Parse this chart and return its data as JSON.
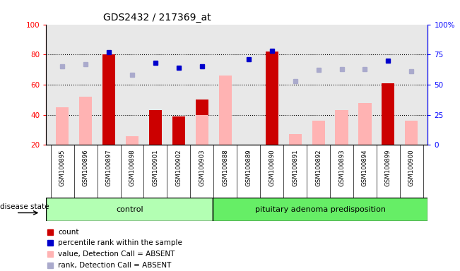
{
  "title": "GDS2432 / 217369_at",
  "samples": [
    "GSM100895",
    "GSM100896",
    "GSM100897",
    "GSM100898",
    "GSM100901",
    "GSM100902",
    "GSM100903",
    "GSM100888",
    "GSM100889",
    "GSM100890",
    "GSM100891",
    "GSM100892",
    "GSM100893",
    "GSM100894",
    "GSM100899",
    "GSM100900"
  ],
  "groups": [
    "control",
    "control",
    "control",
    "control",
    "control",
    "control",
    "control",
    "pituitary adenoma predisposition",
    "pituitary adenoma predisposition",
    "pituitary adenoma predisposition",
    "pituitary adenoma predisposition",
    "pituitary adenoma predisposition",
    "pituitary adenoma predisposition",
    "pituitary adenoma predisposition",
    "pituitary adenoma predisposition",
    "pituitary adenoma predisposition"
  ],
  "count_bars": [
    0,
    0,
    80,
    0,
    43,
    39,
    50,
    0,
    0,
    82,
    0,
    0,
    0,
    0,
    61,
    0
  ],
  "value_absent_bars": [
    45,
    52,
    0,
    26,
    0,
    0,
    40,
    66,
    0,
    0,
    27,
    36,
    43,
    48,
    0,
    36
  ],
  "percentile_rank_dots": [
    0,
    0,
    77,
    0,
    68,
    64,
    65,
    0,
    71,
    78,
    0,
    0,
    0,
    0,
    70,
    0
  ],
  "rank_absent_dots": [
    65,
    67,
    0,
    58,
    0,
    0,
    0,
    0,
    0,
    0,
    53,
    62,
    63,
    63,
    0,
    61
  ],
  "ylim": [
    20,
    100
  ],
  "y2lim": [
    0,
    100
  ],
  "yticks": [
    20,
    40,
    60,
    80,
    100
  ],
  "y2ticks": [
    0,
    25,
    50,
    75,
    100
  ],
  "y2ticklabels": [
    "0",
    "25",
    "50",
    "75",
    "100%"
  ],
  "grid_lines": [
    40,
    60,
    80
  ],
  "count_color": "#cc0000",
  "value_absent_color": "#ffb3b3",
  "percentile_rank_color": "#0000cc",
  "rank_absent_color": "#aaaacc",
  "plot_bg_color": "#e8e8e8",
  "xtick_bg_color": "#d0d0d0",
  "control_group_color": "#b3ffb3",
  "disease_group_color": "#66ee66",
  "n_control": 7,
  "n_disease": 9,
  "bar_width": 0.55
}
